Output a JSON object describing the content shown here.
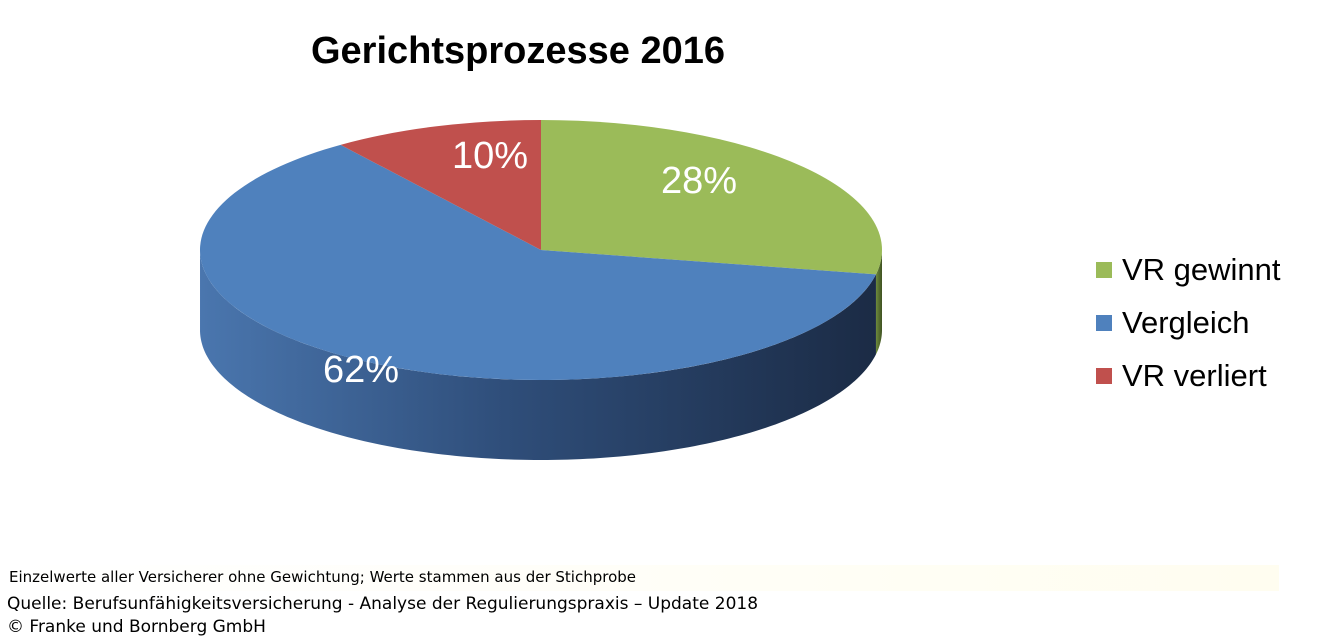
{
  "chart_data": {
    "type": "pie",
    "title": "Gerichtsprozesse 2016",
    "style": "3d",
    "legend_position": "right",
    "slices": [
      {
        "label": "VR gewinnt",
        "value": 28,
        "display": "28%",
        "color": "#9bbb59"
      },
      {
        "label": "Vergleich",
        "value": 62,
        "display": "62%",
        "color": "#4f81bd"
      },
      {
        "label": "VR verliert",
        "value": 10,
        "display": "10%",
        "color": "#c0504d"
      }
    ]
  },
  "footnote": "Einzelwerte aller Versicherer ohne Gewichtung; Werte stammen aus der Stichprobe",
  "source": {
    "line1": "Quelle: Berufsunfähigkeitsversicherung - Analyse der Regulierungspraxis – Update 2018",
    "line2": "© Franke und Bornberg GmbH"
  }
}
